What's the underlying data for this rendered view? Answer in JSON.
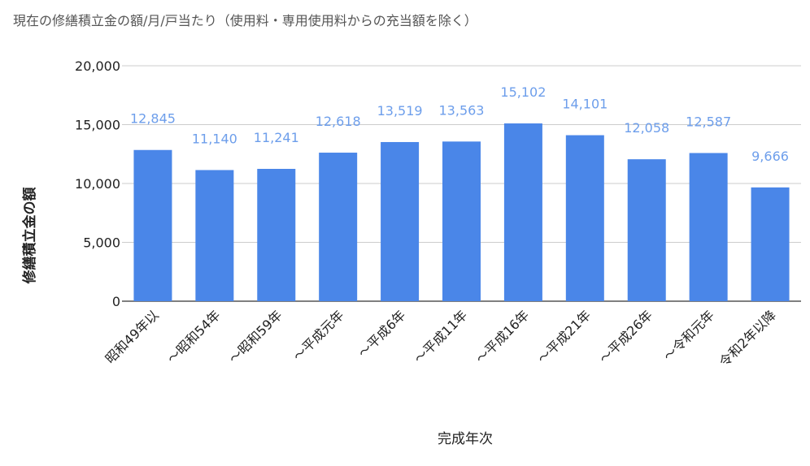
{
  "chart_data": {
    "type": "bar",
    "title": "現在の修繕積立金の額/月/戸当たり（使用料・専用使用料からの充当額を除く）",
    "xlabel": "完成年次",
    "ylabel": "修繕積立金の額",
    "categories": [
      "昭和49年以",
      "～昭和54年",
      "～昭和59年",
      "～平成元年",
      "～平成6年",
      "～平成11年",
      "～平成16年",
      "～平成21年",
      "～平成26年",
      "～令和元年",
      "令和2年以降"
    ],
    "values": [
      12845,
      11140,
      11241,
      12618,
      13519,
      13563,
      15102,
      14101,
      12058,
      12587,
      9666
    ],
    "data_labels": [
      "12,845",
      "11,140",
      "11,241",
      "12,618",
      "13,519",
      "13,563",
      "15,102",
      "14,101",
      "12,058",
      "12,587",
      "9,666"
    ],
    "yticks": [
      "0",
      "5,000",
      "10,000",
      "15,000",
      "20,000"
    ],
    "ylim": [
      0,
      20000
    ],
    "grid": true,
    "legend": "none",
    "colors": {
      "bar": "#4a86e8",
      "data_label": "#6d9eeb",
      "grid": "#cccccc",
      "axis": "#333333",
      "text": "#222222",
      "title": "#555555"
    }
  }
}
